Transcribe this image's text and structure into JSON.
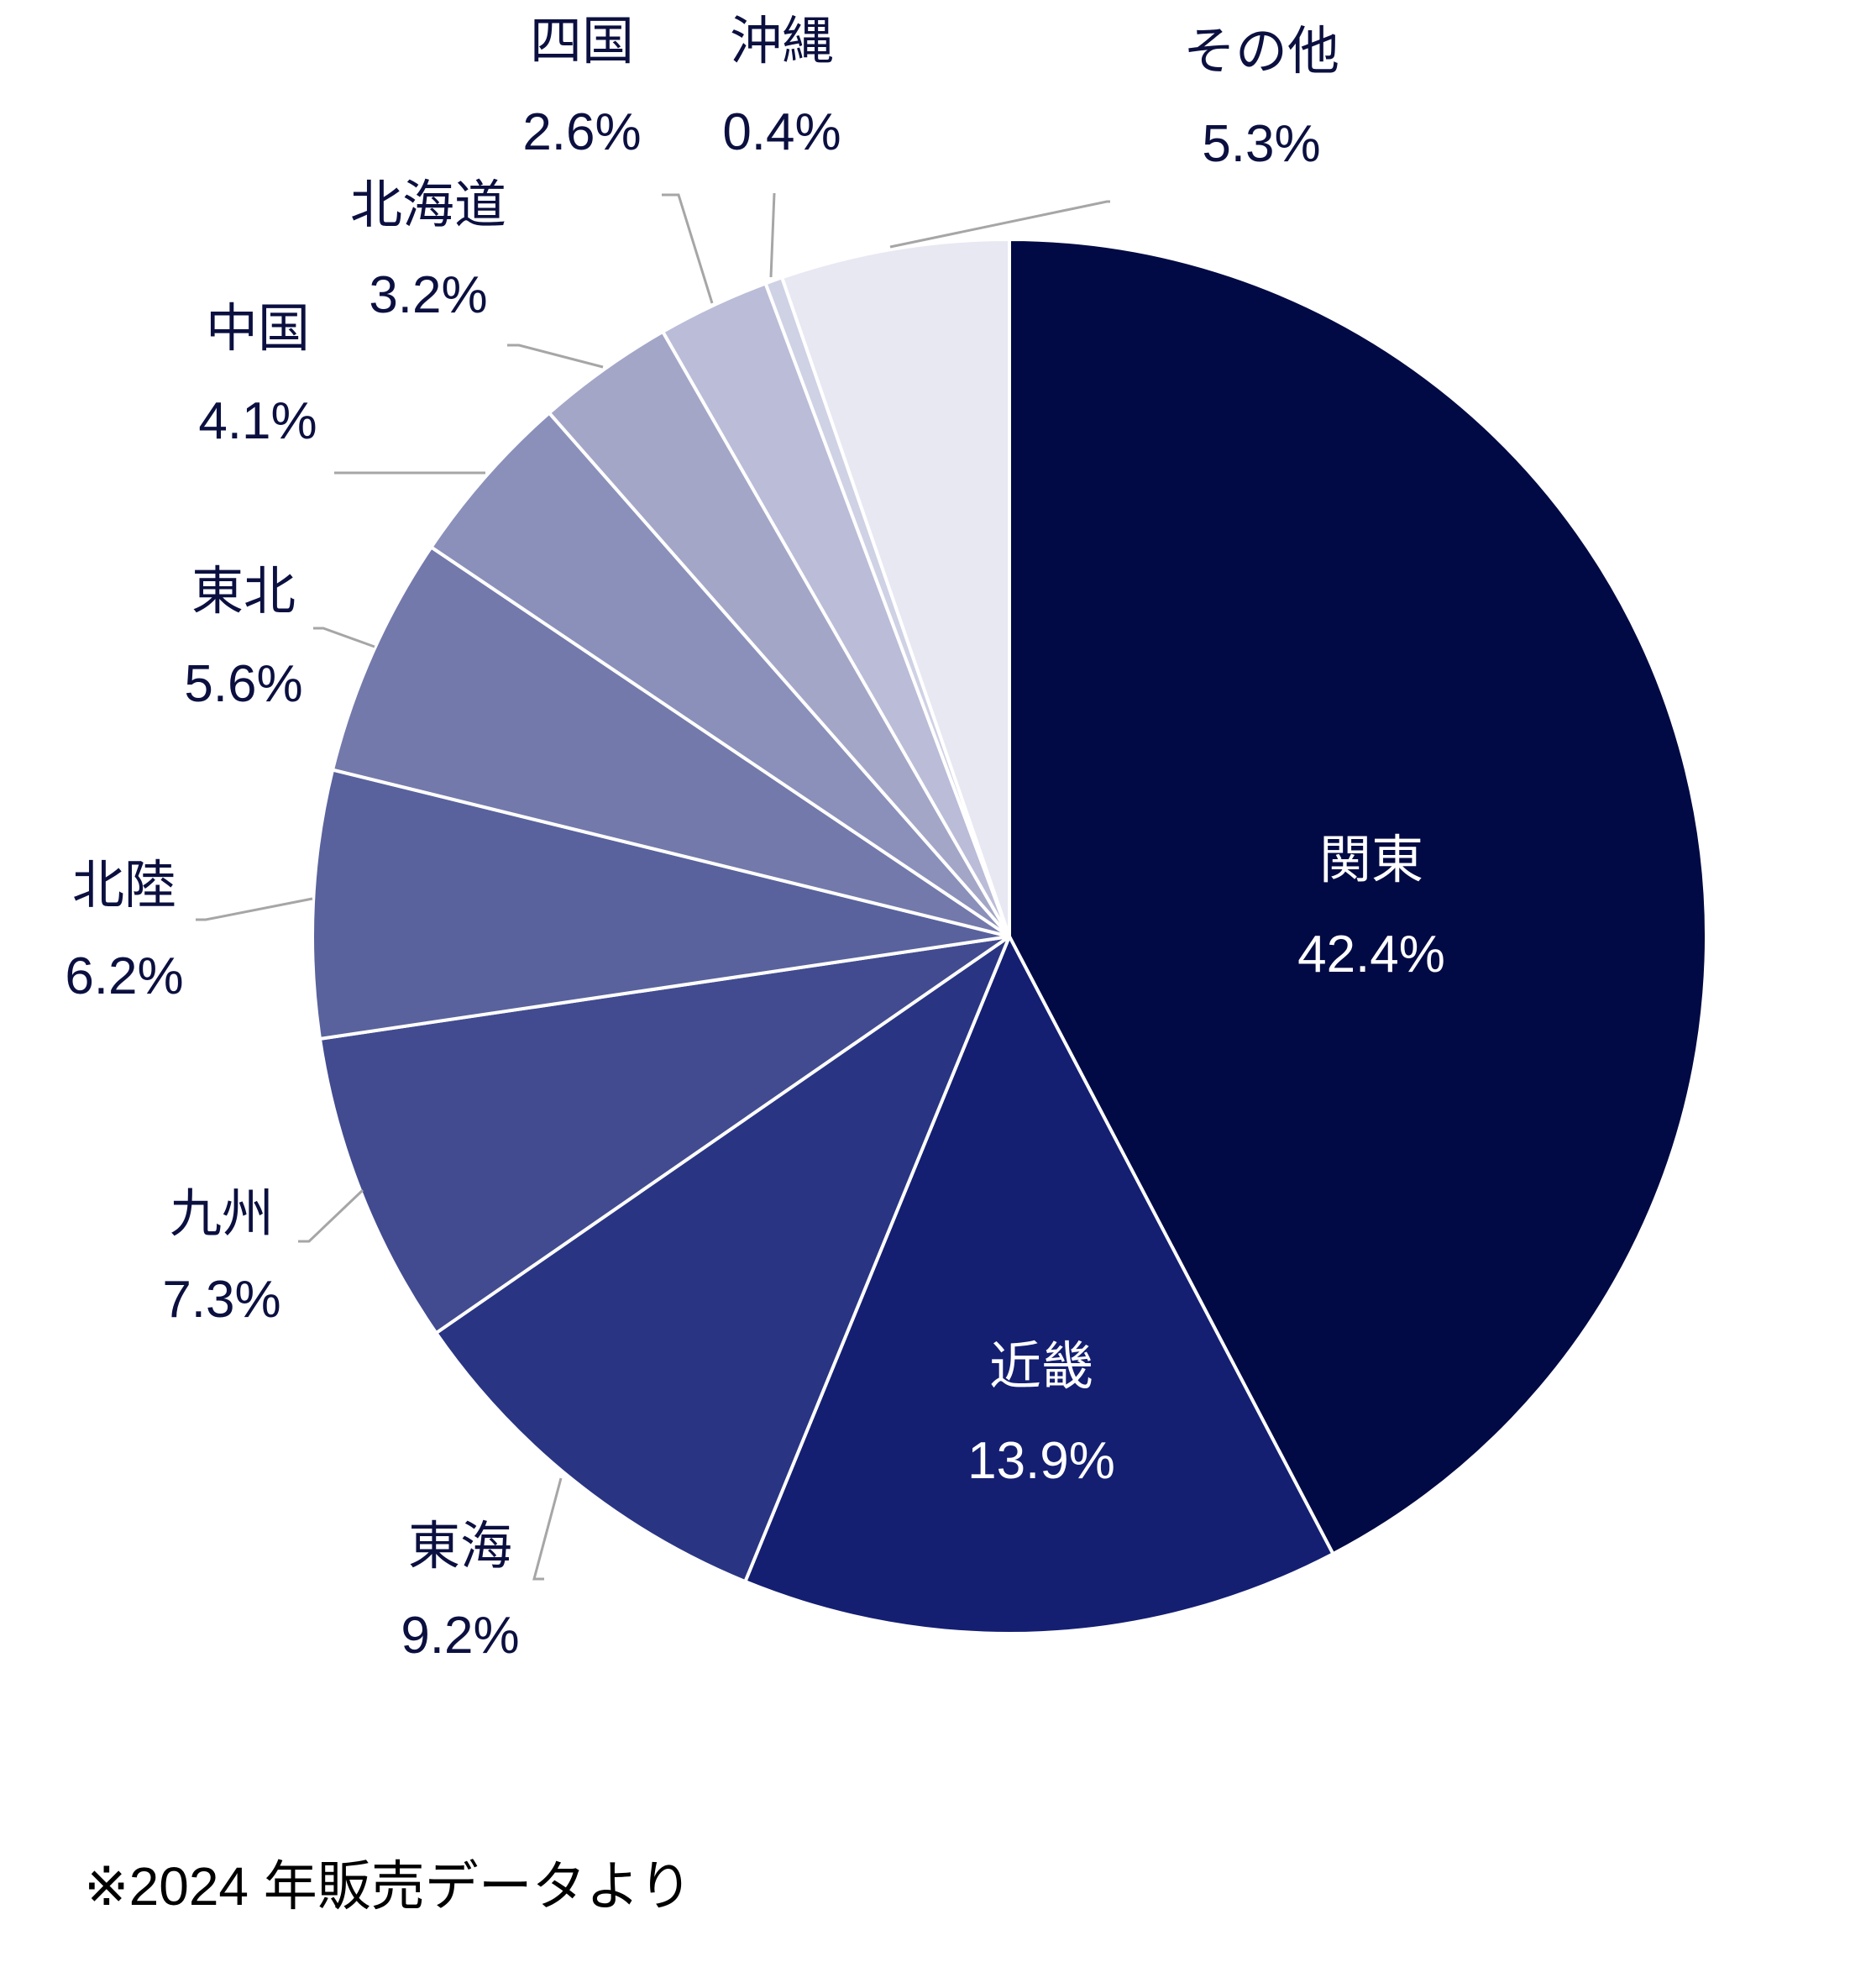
{
  "chart_data": {
    "type": "pie",
    "start_angle_deg": 0,
    "direction": "clockwise",
    "slices": [
      {
        "name": "関東",
        "value": 42.4,
        "value_label": "42.4%",
        "color": "#010a44",
        "label_color": "#ffffff"
      },
      {
        "name": "近畿",
        "value": 13.9,
        "value_label": "13.9%",
        "color": "#141f72",
        "label_color": "#ffffff"
      },
      {
        "name": "東海",
        "value": 9.2,
        "value_label": "9.2%",
        "color": "#293583",
        "label_color": "#0b1040"
      },
      {
        "name": "九州",
        "value": 7.3,
        "value_label": "7.3%",
        "color": "#424b8f",
        "label_color": "#0b1040"
      },
      {
        "name": "北陸",
        "value": 6.2,
        "value_label": "6.2%",
        "color": "#59629d",
        "label_color": "#0b1040"
      },
      {
        "name": "東北",
        "value": 5.6,
        "value_label": "5.6%",
        "color": "#7379ab",
        "label_color": "#0b1040"
      },
      {
        "name": "中国",
        "value": 4.1,
        "value_label": "4.1%",
        "color": "#8a90ba",
        "label_color": "#0b1040"
      },
      {
        "name": "北海道",
        "value": 3.2,
        "value_label": "3.2%",
        "color": "#a3a6c7",
        "label_color": "#0b1040"
      },
      {
        "name": "四国",
        "value": 2.6,
        "value_label": "2.6%",
        "color": "#babcd8",
        "label_color": "#0b1040"
      },
      {
        "name": "沖縄",
        "value": 0.4,
        "value_label": "0.4%",
        "color": "#cfd1e4",
        "label_color": "#0b1040"
      },
      {
        "name": "その他",
        "value": 5.3,
        "value_label": "5.3%",
        "color": "#e7e8f2",
        "label_color": "#0b1040"
      }
    ]
  },
  "footnote": "※2024 年販売データより"
}
